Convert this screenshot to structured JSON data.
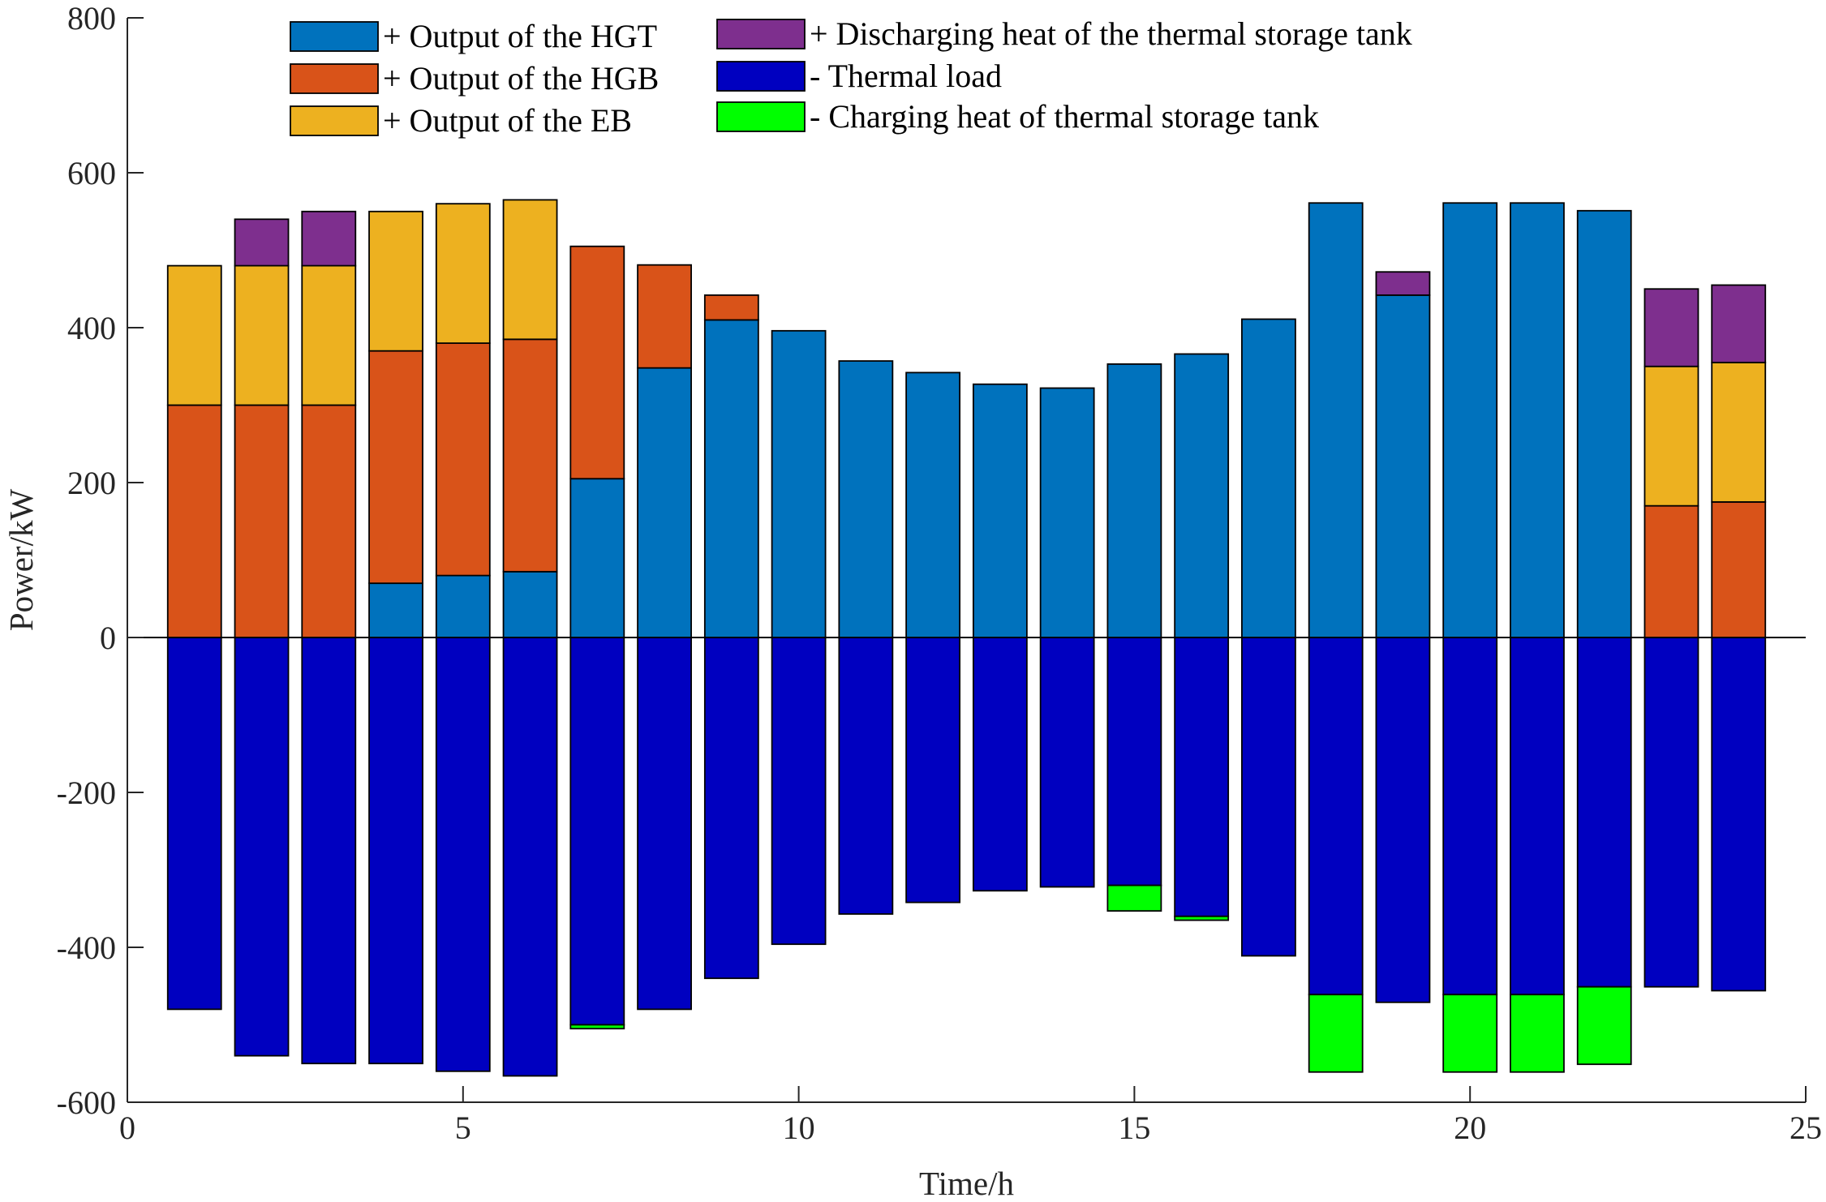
{
  "chart_data": {
    "type": "bar",
    "stacked": true,
    "xlabel": "Time/h",
    "ylabel": "Power/kW",
    "xlim": [
      0,
      25
    ],
    "ylim": [
      -600,
      800
    ],
    "xticks": [
      0,
      5,
      10,
      15,
      20,
      25
    ],
    "yticks": [
      -600,
      -400,
      -200,
      0,
      200,
      400,
      600,
      800
    ],
    "grid": false,
    "legend_placement": "top",
    "x": [
      1,
      2,
      3,
      4,
      5,
      6,
      7,
      8,
      9,
      10,
      11,
      12,
      13,
      14,
      15,
      16,
      17,
      18,
      19,
      20,
      21,
      22,
      23,
      24
    ],
    "series": [
      {
        "name": "+ Output of the HGT",
        "color": "#0072BD",
        "direction": "positive",
        "values": [
          0,
          0,
          0,
          70,
          80,
          85,
          205,
          348,
          410,
          396,
          357,
          342,
          327,
          322,
          353,
          366,
          411,
          561,
          442,
          561,
          561,
          551,
          0,
          0
        ]
      },
      {
        "name": "+ Output of the HGB",
        "color": "#D95319",
        "direction": "positive",
        "values": [
          300,
          300,
          300,
          300,
          300,
          300,
          300,
          133,
          32,
          0,
          0,
          0,
          0,
          0,
          0,
          0,
          0,
          0,
          0,
          0,
          0,
          0,
          170,
          175
        ]
      },
      {
        "name": "+ Output of the EB",
        "color": "#EDB120",
        "direction": "positive",
        "values": [
          180,
          180,
          180,
          180,
          180,
          180,
          0,
          0,
          0,
          0,
          0,
          0,
          0,
          0,
          0,
          0,
          0,
          0,
          0,
          0,
          0,
          0,
          180,
          180
        ]
      },
      {
        "name": "+ Discharging heat of the thermal storage tank",
        "color": "#7E2F8E",
        "direction": "positive",
        "values": [
          0,
          60,
          70,
          0,
          0,
          0,
          0,
          0,
          0,
          0,
          0,
          0,
          0,
          0,
          0,
          0,
          0,
          0,
          30,
          0,
          0,
          0,
          100,
          100
        ]
      },
      {
        "name": "- Thermal load",
        "color": "#0000C0",
        "direction": "negative",
        "values": [
          -480,
          -540,
          -550,
          -550,
          -560,
          -566,
          -500,
          -480,
          -440,
          -396,
          -357,
          -342,
          -327,
          -322,
          -320,
          -360,
          -411,
          -461,
          -471,
          -461,
          -461,
          -451,
          -451,
          -456
        ]
      },
      {
        "name": "- Charging heat of thermal storage tank",
        "color": "#00FF00",
        "direction": "negative",
        "values": [
          0,
          0,
          0,
          0,
          0,
          0,
          -5,
          0,
          0,
          0,
          0,
          0,
          0,
          0,
          -33,
          -5,
          0,
          -100,
          0,
          -100,
          -100,
          -100,
          0,
          0
        ]
      }
    ]
  }
}
